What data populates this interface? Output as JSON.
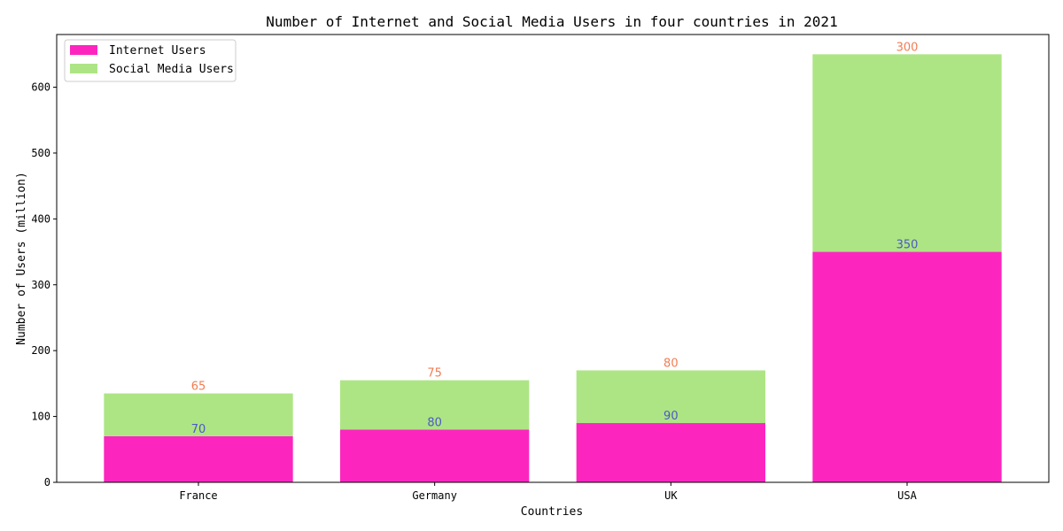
{
  "chart_data": {
    "type": "bar",
    "stacked": true,
    "title": "Number of Internet and Social Media Users in four countries in 2021",
    "xlabel": "Countries",
    "ylabel": "Number of Users (million)",
    "categories": [
      "France",
      "Germany",
      "UK",
      "USA"
    ],
    "ylim": [
      0,
      680
    ],
    "yticks": [
      0,
      100,
      200,
      300,
      400,
      500,
      600
    ],
    "grid": false,
    "legend_position": "top-left",
    "series": [
      {
        "name": "Internet Users",
        "values": [
          70,
          80,
          90,
          350
        ],
        "color": "#fc26bf",
        "label_color": "#4e58c6"
      },
      {
        "name": "Social Media Users",
        "values": [
          65,
          75,
          80,
          300
        ],
        "color": "#ade584",
        "label_color": "#f27d53"
      }
    ]
  }
}
